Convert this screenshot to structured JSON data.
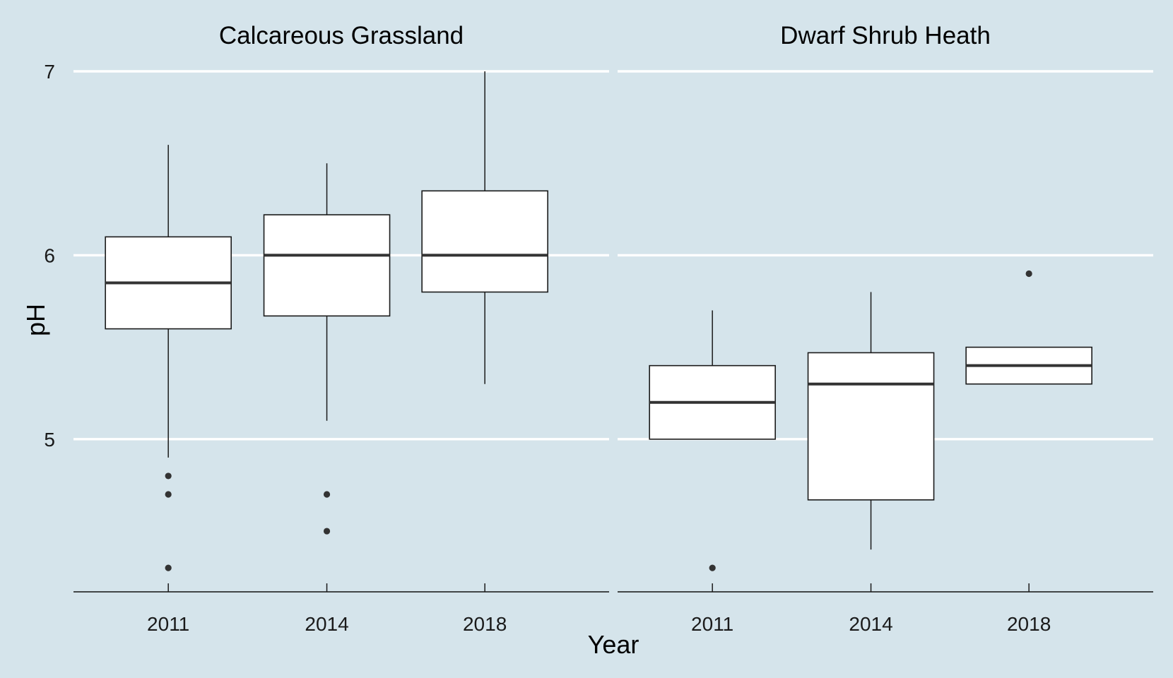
{
  "chart_data": {
    "type": "boxplot",
    "xlabel": "Year",
    "ylabel": "pH",
    "ylim": [
      4.17,
      7.0
    ],
    "yticks": [
      "5",
      "6",
      "7"
    ],
    "grid": "horizontal major",
    "background_color": "#d5e4eb",
    "categories": [
      "2011",
      "2014",
      "2018"
    ],
    "facets": [
      {
        "name": "Calcareous Grassland",
        "boxes": [
          {
            "x": "2011",
            "whisker_low": 4.9,
            "q1": 5.6,
            "median": 5.85,
            "q3": 6.1,
            "whisker_high": 6.6,
            "outliers": [
              4.8,
              4.7,
              4.3
            ]
          },
          {
            "x": "2014",
            "whisker_low": 5.1,
            "q1": 5.67,
            "median": 6.0,
            "q3": 6.22,
            "whisker_high": 6.5,
            "outliers": [
              4.7,
              4.5
            ]
          },
          {
            "x": "2018",
            "whisker_low": 5.3,
            "q1": 5.8,
            "median": 6.0,
            "q3": 6.35,
            "whisker_high": 7.0,
            "outliers": []
          }
        ]
      },
      {
        "name": "Dwarf Shrub Heath",
        "boxes": [
          {
            "x": "2011",
            "whisker_low": 5.0,
            "q1": 5.0,
            "median": 5.2,
            "q3": 5.4,
            "whisker_high": 5.7,
            "outliers": [
              4.3
            ]
          },
          {
            "x": "2014",
            "whisker_low": 4.4,
            "q1": 4.67,
            "median": 5.3,
            "q3": 5.47,
            "whisker_high": 5.8,
            "outliers": []
          },
          {
            "x": "2018",
            "whisker_low": 5.3,
            "q1": 5.3,
            "median": 5.4,
            "q3": 5.5,
            "whisker_high": 5.5,
            "outliers": [
              5.9
            ]
          }
        ]
      }
    ]
  }
}
